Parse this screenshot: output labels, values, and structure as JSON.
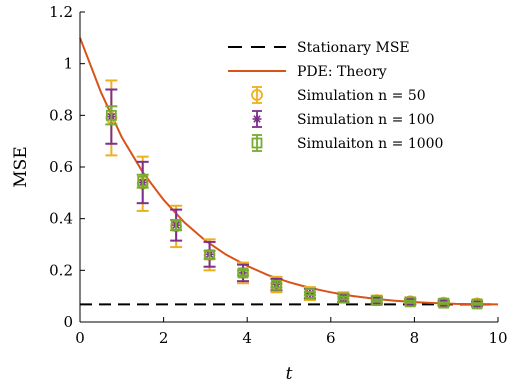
{
  "chart_data": {
    "type": "line",
    "xlabel": "t",
    "ylabel": "MSE",
    "xlim": [
      0,
      10
    ],
    "ylim": [
      0,
      1.2
    ],
    "xticks": [
      0,
      2,
      4,
      6,
      8,
      10
    ],
    "yticks": [
      0,
      0.2,
      0.4,
      0.6,
      0.8,
      1,
      1.2
    ],
    "xtick_labels": [
      "0",
      "2",
      "4",
      "6",
      "8",
      "10"
    ],
    "ytick_labels": [
      "0",
      "0.2",
      "0.4",
      "0.6",
      "0.8",
      "1",
      "1.2"
    ],
    "grid": false,
    "legend_position": "top-right",
    "stationary_mse": 0.068,
    "theory": {
      "name": "PDE: Theory",
      "color": "#d95319",
      "x": [
        0,
        0.5,
        1,
        1.5,
        2,
        2.5,
        3,
        3.5,
        4,
        4.5,
        5,
        5.5,
        6,
        6.5,
        7,
        7.5,
        8,
        8.5,
        9,
        9.5,
        10
      ],
      "y": [
        1.1,
        0.89,
        0.715,
        0.58,
        0.473,
        0.385,
        0.315,
        0.26,
        0.217,
        0.181,
        0.154,
        0.132,
        0.115,
        0.101,
        0.091,
        0.083,
        0.077,
        0.073,
        0.07,
        0.069,
        0.068
      ]
    },
    "stationary": {
      "name": "Stationary MSE",
      "color": "#000000"
    },
    "series": [
      {
        "name": "Simulation n = 50",
        "marker": "circle",
        "color": "#edb120",
        "x": [
          0.75,
          1.5,
          2.3,
          3.1,
          3.9,
          4.7,
          5.5,
          6.3,
          7.1,
          7.9,
          8.7,
          9.5
        ],
        "y": [
          0.79,
          0.535,
          0.37,
          0.26,
          0.19,
          0.145,
          0.11,
          0.095,
          0.085,
          0.08,
          0.075,
          0.072
        ],
        "err": [
          0.145,
          0.105,
          0.08,
          0.06,
          0.04,
          0.03,
          0.025,
          0.02,
          0.017,
          0.015,
          0.013,
          0.012
        ]
      },
      {
        "name": "Simulation n = 100",
        "marker": "star",
        "color": "#7e2f8e",
        "x": [
          0.75,
          1.5,
          2.3,
          3.1,
          3.9,
          4.7,
          5.5,
          6.3,
          7.1,
          7.9,
          8.7,
          9.5
        ],
        "y": [
          0.795,
          0.54,
          0.375,
          0.262,
          0.19,
          0.145,
          0.11,
          0.093,
          0.083,
          0.078,
          0.073,
          0.07
        ],
        "err": [
          0.105,
          0.08,
          0.06,
          0.048,
          0.032,
          0.022,
          0.018,
          0.015,
          0.012,
          0.01,
          0.009,
          0.008
        ]
      },
      {
        "name": "Simulaiton n = 1000",
        "marker": "square",
        "color": "#77ac30",
        "x": [
          0.75,
          1.5,
          2.3,
          3.1,
          3.9,
          4.7,
          5.5,
          6.3,
          7.1,
          7.9,
          8.7,
          9.5
        ],
        "y": [
          0.8,
          0.545,
          0.375,
          0.26,
          0.19,
          0.142,
          0.11,
          0.093,
          0.083,
          0.078,
          0.073,
          0.07
        ],
        "err": [
          0.035,
          0.025,
          0.02,
          0.015,
          0.01,
          0.008,
          0.006,
          0.005,
          0.004,
          0.004,
          0.003,
          0.003
        ]
      }
    ]
  }
}
